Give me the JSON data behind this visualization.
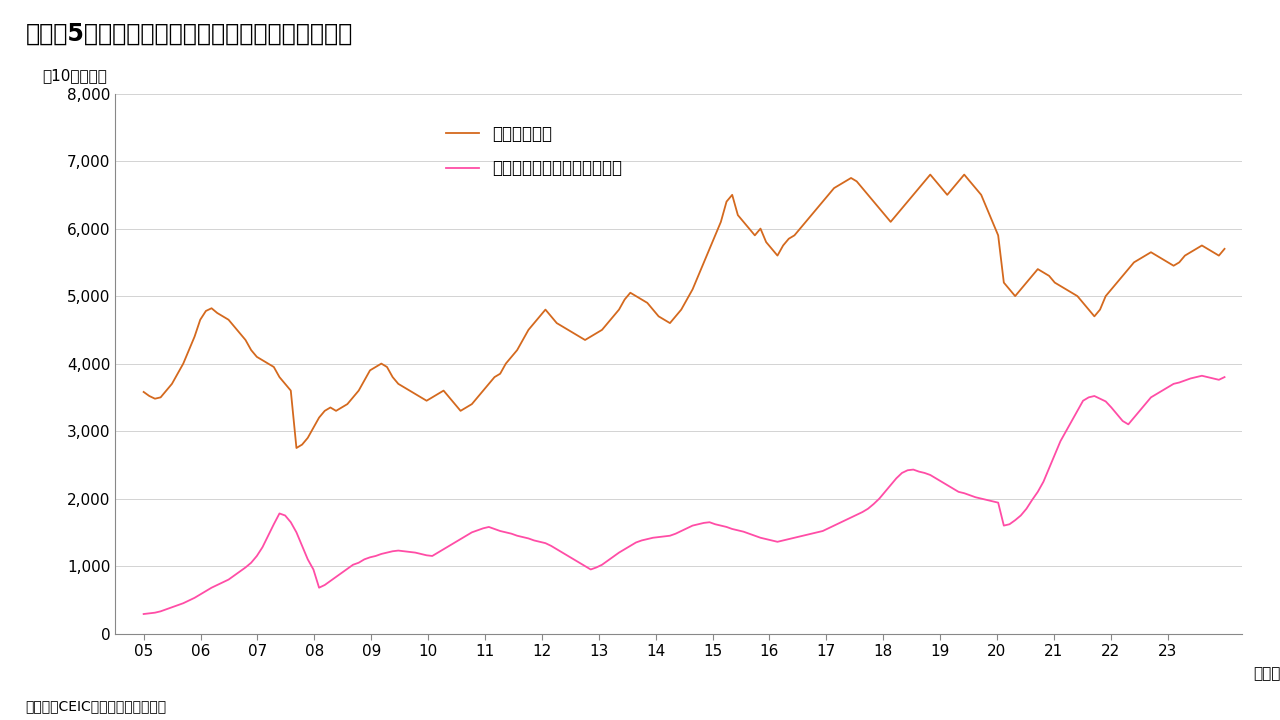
{
  "title": "（図表5）ムンバイ株式市場・東証の時価総額推移",
  "ylabel": "（10億ドル）",
  "xlabel_suffix": "（年）",
  "source_text": "（出所）CEICよりインベスコ作成",
  "legend_tse": "東証時価総額",
  "legend_mumbai": "ムンバイ株式市場の時価総額",
  "tse_color": "#D4691E",
  "mumbai_color": "#FF4DA6",
  "background_color": "#FFFFFF",
  "ylim": [
    0,
    8000
  ],
  "yticks": [
    0,
    1000,
    2000,
    3000,
    4000,
    5000,
    6000,
    7000,
    8000
  ],
  "xtick_labels": [
    "05",
    "06",
    "07",
    "08",
    "09",
    "10",
    "11",
    "12",
    "13",
    "14",
    "15",
    "16",
    "17",
    "18",
    "19",
    "20",
    "21",
    "22",
    "23"
  ],
  "tse_data": [
    3580,
    3520,
    3480,
    3500,
    3600,
    3700,
    3850,
    4000,
    4200,
    4400,
    4650,
    4780,
    4820,
    4750,
    4700,
    4650,
    4550,
    4450,
    4350,
    4200,
    4100,
    4050,
    4000,
    3950,
    3800,
    3700,
    3600,
    2750,
    2800,
    2900,
    3050,
    3200,
    3300,
    3350,
    3300,
    3350,
    3400,
    3500,
    3600,
    3750,
    3900,
    3950,
    4000,
    3950,
    3800,
    3700,
    3650,
    3600,
    3550,
    3500,
    3450,
    3500,
    3550,
    3600,
    3500,
    3400,
    3300,
    3350,
    3400,
    3500,
    3600,
    3700,
    3800,
    3850,
    4000,
    4100,
    4200,
    4350,
    4500,
    4600,
    4700,
    4800,
    4700,
    4600,
    4550,
    4500,
    4450,
    4400,
    4350,
    4400,
    4450,
    4500,
    4600,
    4700,
    4800,
    4950,
    5050,
    5000,
    4950,
    4900,
    4800,
    4700,
    4650,
    4600,
    4700,
    4800,
    4950,
    5100,
    5300,
    5500,
    5700,
    5900,
    6100,
    6400,
    6500,
    6200,
    6100,
    6000,
    5900,
    6000,
    5800,
    5700,
    5600,
    5750,
    5850,
    5900,
    6000,
    6100,
    6200,
    6300,
    6400,
    6500,
    6600,
    6650,
    6700,
    6750,
    6700,
    6600,
    6500,
    6400,
    6300,
    6200,
    6100,
    6200,
    6300,
    6400,
    6500,
    6600,
    6700,
    6800,
    6700,
    6600,
    6500,
    6600,
    6700,
    6800,
    6700,
    6600,
    6500,
    6300,
    6100,
    5900,
    5200,
    5100,
    5000,
    5100,
    5200,
    5300,
    5400,
    5350,
    5300,
    5200,
    5150,
    5100,
    5050,
    5000,
    4900,
    4800,
    4700,
    4800,
    5000,
    5100,
    5200,
    5300,
    5400,
    5500,
    5550,
    5600,
    5650,
    5600,
    5550,
    5500,
    5450,
    5500,
    5600,
    5650,
    5700,
    5750,
    5700,
    5650,
    5600,
    5700
  ],
  "mumbai_data": [
    290,
    300,
    310,
    330,
    360,
    390,
    420,
    450,
    490,
    530,
    580,
    630,
    680,
    720,
    760,
    800,
    860,
    920,
    980,
    1050,
    1150,
    1280,
    1450,
    1620,
    1780,
    1750,
    1650,
    1500,
    1300,
    1100,
    950,
    680,
    720,
    780,
    840,
    900,
    960,
    1020,
    1050,
    1100,
    1130,
    1150,
    1180,
    1200,
    1220,
    1230,
    1220,
    1210,
    1200,
    1180,
    1160,
    1150,
    1200,
    1250,
    1300,
    1350,
    1400,
    1450,
    1500,
    1530,
    1560,
    1580,
    1550,
    1520,
    1500,
    1480,
    1450,
    1430,
    1410,
    1380,
    1360,
    1340,
    1300,
    1250,
    1200,
    1150,
    1100,
    1050,
    1000,
    950,
    980,
    1020,
    1080,
    1140,
    1200,
    1250,
    1300,
    1350,
    1380,
    1400,
    1420,
    1430,
    1440,
    1450,
    1480,
    1520,
    1560,
    1600,
    1620,
    1640,
    1650,
    1620,
    1600,
    1580,
    1550,
    1530,
    1510,
    1480,
    1450,
    1420,
    1400,
    1380,
    1360,
    1380,
    1400,
    1420,
    1440,
    1460,
    1480,
    1500,
    1520,
    1560,
    1600,
    1640,
    1680,
    1720,
    1760,
    1800,
    1850,
    1920,
    2000,
    2100,
    2200,
    2300,
    2380,
    2420,
    2430,
    2400,
    2380,
    2350,
    2300,
    2250,
    2200,
    2150,
    2100,
    2080,
    2050,
    2020,
    2000,
    1980,
    1960,
    1940,
    1600,
    1620,
    1680,
    1750,
    1850,
    1980,
    2100,
    2250,
    2450,
    2650,
    2850,
    3000,
    3150,
    3300,
    3450,
    3500,
    3520,
    3480,
    3440,
    3350,
    3250,
    3150,
    3100,
    3200,
    3300,
    3400,
    3500,
    3550,
    3600,
    3650,
    3700,
    3720,
    3750,
    3780,
    3800,
    3820,
    3800,
    3780,
    3760,
    3800
  ]
}
